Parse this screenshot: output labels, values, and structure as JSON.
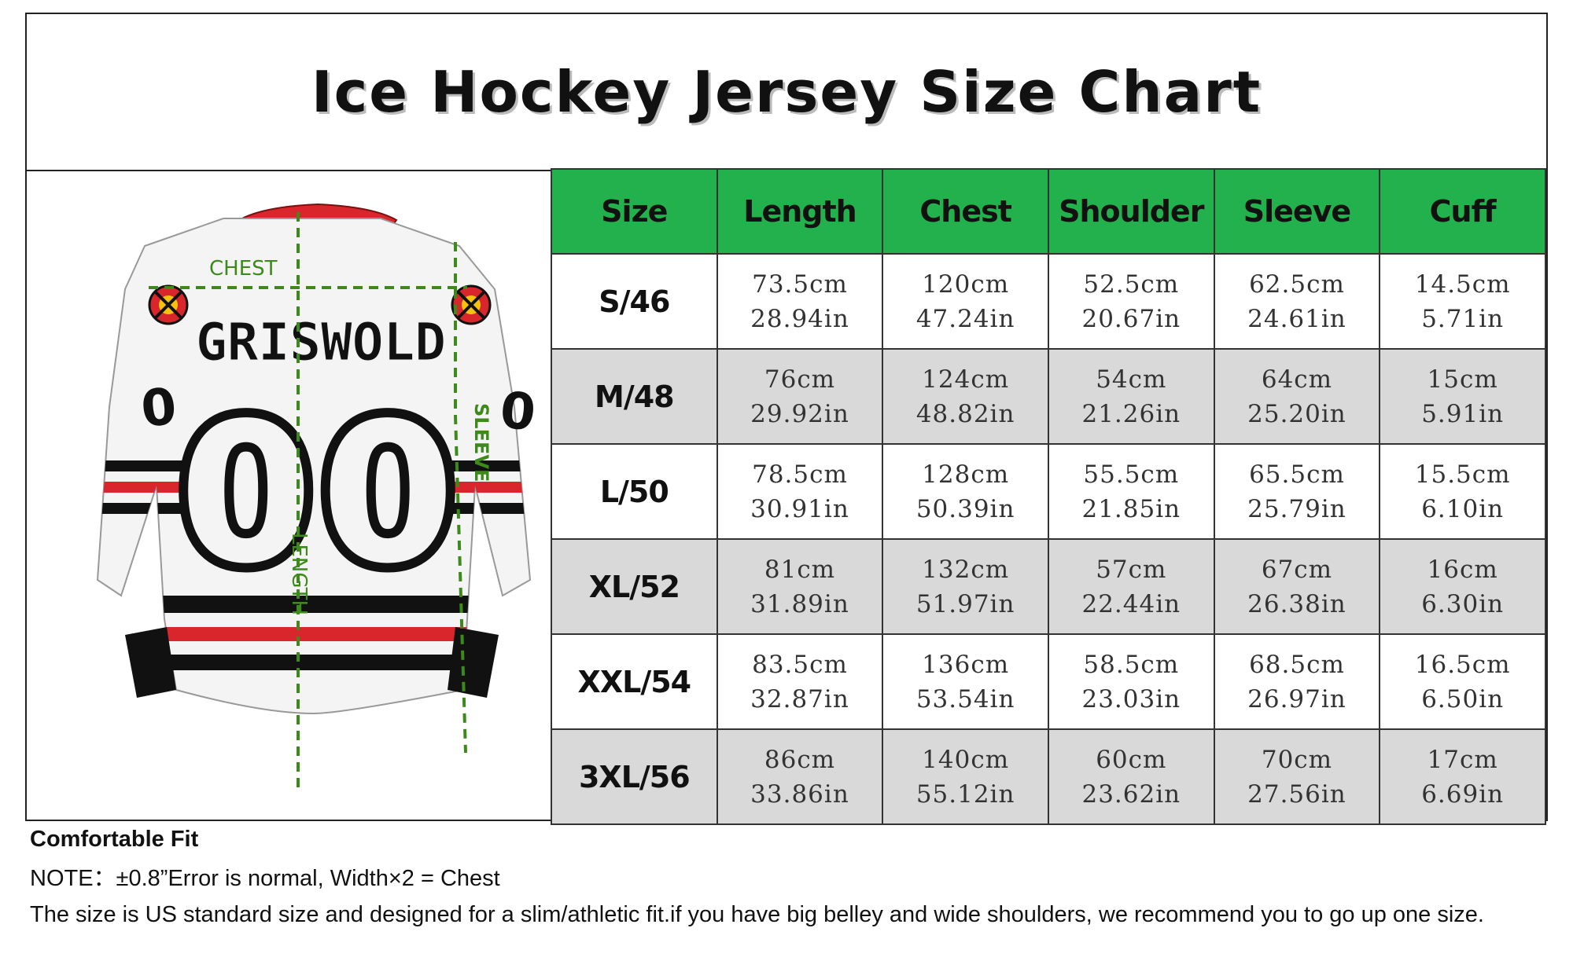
{
  "title": "Ice Hockey Jersey Size Chart",
  "jersey": {
    "name": "GRISWOLD",
    "number": "00",
    "measure_labels": {
      "chest": "CHEST",
      "sleeve": "SLEEVE",
      "length": "LENGTH"
    }
  },
  "colors": {
    "header_green": "#22b14c",
    "row_alt_gray": "#d9d9d9",
    "jersey_red": "#d8262c",
    "jersey_black": "#111111",
    "measure_green": "#3d8a1a"
  },
  "table": {
    "headers": [
      "Size",
      "Length",
      "Chest",
      "Shoulder",
      "Sleeve",
      "Cuff"
    ],
    "rows": [
      {
        "size": "S/46",
        "cells": [
          [
            "73.5cm",
            "28.94in"
          ],
          [
            "120cm",
            "47.24in"
          ],
          [
            "52.5cm",
            "20.67in"
          ],
          [
            "62.5cm",
            "24.61in"
          ],
          [
            "14.5cm",
            "5.71in"
          ]
        ]
      },
      {
        "size": "M/48",
        "cells": [
          [
            "76cm",
            "29.92in"
          ],
          [
            "124cm",
            "48.82in"
          ],
          [
            "54cm",
            "21.26in"
          ],
          [
            "64cm",
            "25.20in"
          ],
          [
            "15cm",
            "5.91in"
          ]
        ]
      },
      {
        "size": "L/50",
        "cells": [
          [
            "78.5cm",
            "30.91in"
          ],
          [
            "128cm",
            "50.39in"
          ],
          [
            "55.5cm",
            "21.85in"
          ],
          [
            "65.5cm",
            "25.79in"
          ],
          [
            "15.5cm",
            "6.10in"
          ]
        ]
      },
      {
        "size": "XL/52",
        "cells": [
          [
            "81cm",
            "31.89in"
          ],
          [
            "132cm",
            "51.97in"
          ],
          [
            "57cm",
            "22.44in"
          ],
          [
            "67cm",
            "26.38in"
          ],
          [
            "16cm",
            "6.30in"
          ]
        ]
      },
      {
        "size": "XXL/54",
        "cells": [
          [
            "83.5cm",
            "32.87in"
          ],
          [
            "136cm",
            "53.54in"
          ],
          [
            "58.5cm",
            "23.03in"
          ],
          [
            "68.5cm",
            "26.97in"
          ],
          [
            "16.5cm",
            "6.50in"
          ]
        ]
      },
      {
        "size": "3XL/56",
        "cells": [
          [
            "86cm",
            "33.86in"
          ],
          [
            "140cm",
            "55.12in"
          ],
          [
            "60cm",
            "23.62in"
          ],
          [
            "70cm",
            "27.56in"
          ],
          [
            "17cm",
            "6.69in"
          ]
        ]
      }
    ]
  },
  "notes": {
    "fit": "Comfortable Fit",
    "note": "NOTE：±0.8”Error is normal, Width×2 = Chest",
    "advice": "The size is US standard size and designed for a slim/athletic fit.if you have big belley and wide shoulders, we recommend you to go up one size."
  }
}
